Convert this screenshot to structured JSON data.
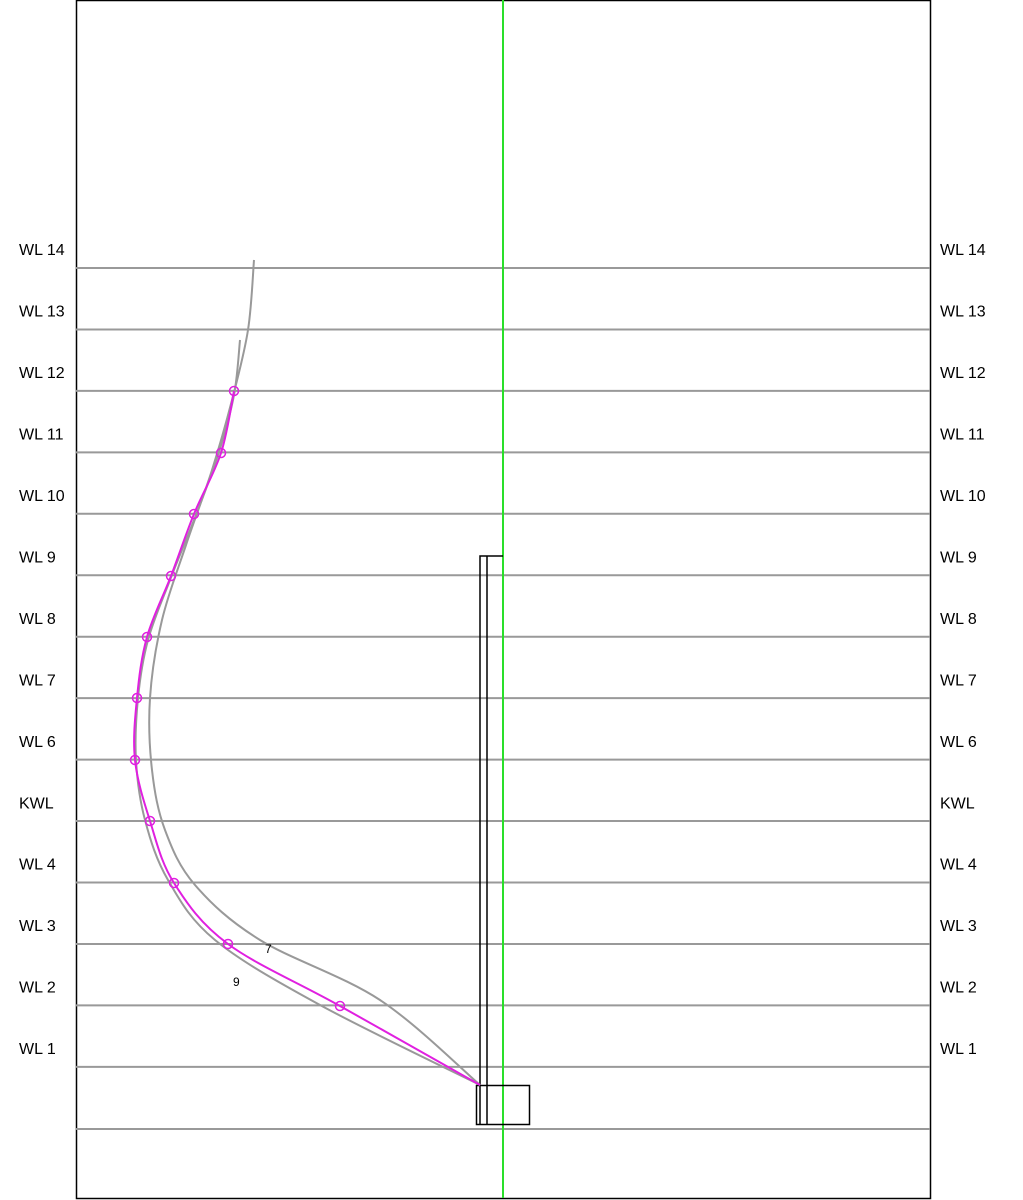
{
  "waterlines": [
    "WL 14",
    "WL 13",
    "WL 12",
    "WL 11",
    "WL 10",
    "WL 9",
    "WL 8",
    "WL 7",
    "WL 6",
    "KWL",
    "WL 4",
    "WL 3",
    "WL 2",
    "WL 1"
  ],
  "curve_labels": [
    "7",
    "9"
  ]
}
